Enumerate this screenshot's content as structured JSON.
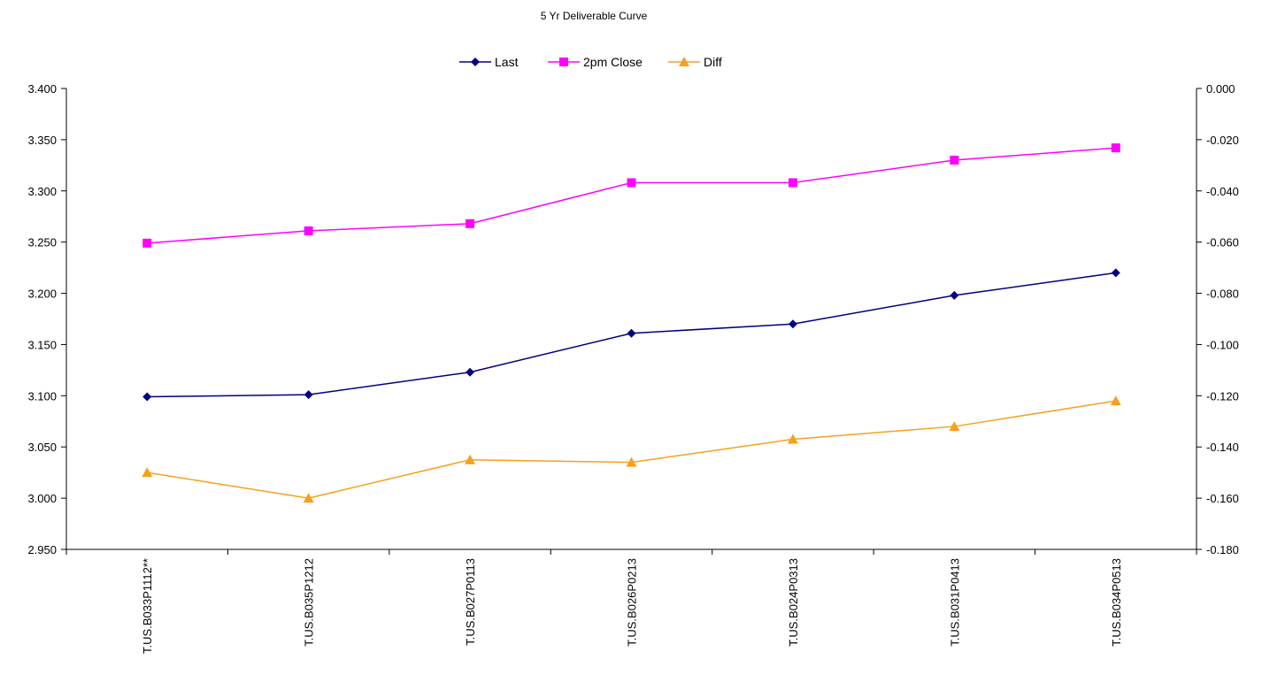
{
  "chart_data": {
    "type": "line",
    "title": "5 Yr Deliverable Curve",
    "categories": [
      "T.US.B033P1112**",
      "T.US.B035P1212",
      "T.US.B027P0113",
      "T.US.B026P0213",
      "T.US.B024P0313",
      "T.US.B031P0413",
      "T.US.B034P0513"
    ],
    "series": [
      {
        "name": "Last",
        "axis": "left",
        "color": "#000080",
        "marker": "diamond",
        "values": [
          3.099,
          3.101,
          3.123,
          3.161,
          3.17,
          3.198,
          3.22
        ]
      },
      {
        "name": "2pm Close",
        "axis": "left",
        "color": "#FF00FF",
        "marker": "square",
        "values": [
          3.249,
          3.261,
          3.268,
          3.308,
          3.308,
          3.33,
          3.342
        ]
      },
      {
        "name": "Diff",
        "axis": "right",
        "color": "#F7A01E",
        "marker": "triangle",
        "values": [
          -0.15,
          -0.16,
          -0.145,
          -0.146,
          -0.137,
          -0.132,
          -0.122
        ]
      }
    ],
    "y_left": {
      "min": 2.95,
      "max": 3.4,
      "step": 0.05,
      "decimals": 3
    },
    "y_right": {
      "min": -0.18,
      "max": 0.0,
      "step": 0.02,
      "decimals": 3
    },
    "grid": false,
    "legend_position": "top-center"
  }
}
